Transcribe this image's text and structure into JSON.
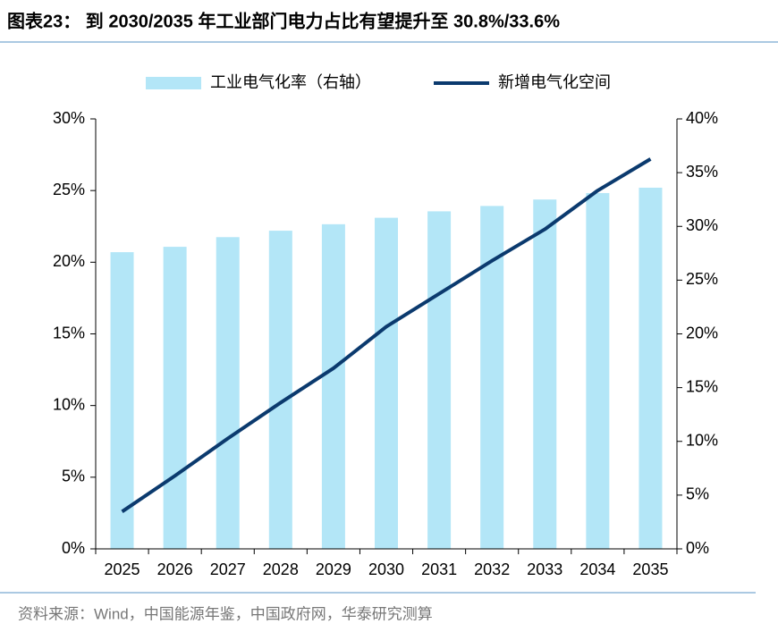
{
  "chart_data": {
    "type": "bar-line",
    "title": "图表23：  到 2030/2035 年工业部门电力占比有望提升至 30.8%/33.6%",
    "source": "资料来源：Wind，中国能源年鉴，中国政府网，华泰研究测算",
    "categories": [
      "2025",
      "2026",
      "2027",
      "2028",
      "2029",
      "2030",
      "2031",
      "2032",
      "2033",
      "2034",
      "2035"
    ],
    "series": [
      {
        "name": "工业电气化率（右轴）",
        "type": "bar",
        "axis": "y2",
        "color": "#b3e6f7",
        "values": [
          27.6,
          28.1,
          29.0,
          29.6,
          30.2,
          30.8,
          31.4,
          31.9,
          32.5,
          33.1,
          33.6
        ]
      },
      {
        "name": "新增电气化空间",
        "type": "line",
        "axis": "y",
        "color": "#0b3a6e",
        "values": [
          2.6,
          5.1,
          7.7,
          10.2,
          12.6,
          15.5,
          17.8,
          20.1,
          22.3,
          25.0,
          27.2
        ]
      }
    ],
    "ylim": [
      0,
      30
    ],
    "yticks": [
      {
        "value": 0,
        "label": "0%"
      },
      {
        "value": 5,
        "label": "5%"
      },
      {
        "value": 10,
        "label": "10%"
      },
      {
        "value": 15,
        "label": "15%"
      },
      {
        "value": 20,
        "label": "20%"
      },
      {
        "value": 25,
        "label": "25%"
      },
      {
        "value": 30,
        "label": "30%"
      }
    ],
    "y2lim": [
      0,
      40
    ],
    "y2ticks": [
      {
        "value": 0,
        "label": "0%"
      },
      {
        "value": 5,
        "label": "5%"
      },
      {
        "value": 10,
        "label": "10%"
      },
      {
        "value": 15,
        "label": "15%"
      },
      {
        "value": 20,
        "label": "20%"
      },
      {
        "value": 25,
        "label": "25%"
      },
      {
        "value": 30,
        "label": "30%"
      },
      {
        "value": 35,
        "label": "35%"
      },
      {
        "value": 40,
        "label": "40%"
      }
    ],
    "legend": "top"
  }
}
